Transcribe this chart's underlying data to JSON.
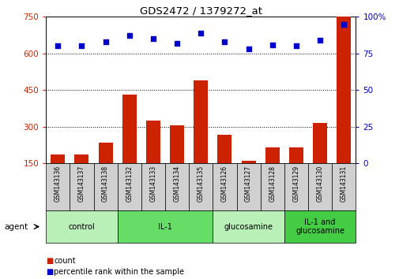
{
  "title": "GDS2472 / 1379272_at",
  "samples": [
    "GSM143136",
    "GSM143137",
    "GSM143138",
    "GSM143132",
    "GSM143133",
    "GSM143134",
    "GSM143135",
    "GSM143126",
    "GSM143127",
    "GSM143128",
    "GSM143129",
    "GSM143130",
    "GSM143131"
  ],
  "counts": [
    185,
    185,
    235,
    430,
    325,
    305,
    490,
    265,
    160,
    215,
    215,
    315,
    750
  ],
  "percentiles": [
    80,
    80,
    83,
    87,
    85,
    82,
    89,
    83,
    78,
    81,
    80,
    84,
    95
  ],
  "groups": [
    {
      "label": "control",
      "start": 0,
      "end": 3,
      "color": "#b8f0b8"
    },
    {
      "label": "IL-1",
      "start": 3,
      "end": 7,
      "color": "#66dd66"
    },
    {
      "label": "glucosamine",
      "start": 7,
      "end": 10,
      "color": "#b8f0b8"
    },
    {
      "label": "IL-1 and\nglucosamine",
      "start": 10,
      "end": 13,
      "color": "#44cc44"
    }
  ],
  "ylim_left": [
    150,
    750
  ],
  "ylim_right": [
    0,
    100
  ],
  "yticks_left": [
    150,
    300,
    450,
    600,
    750
  ],
  "yticks_right": [
    0,
    25,
    50,
    75,
    100
  ],
  "right_tick_labels": [
    "0",
    "25",
    "50",
    "75",
    "100%"
  ],
  "bar_color": "#cc2200",
  "dot_color": "#0000cc",
  "bg_color": "#ffffff",
  "tick_label_color_left": "#cc2200",
  "tick_label_color_right": "#0000cc",
  "grid_color": "#000000",
  "sample_bg_color": "#d0d0d0",
  "bar_bottom": 150
}
